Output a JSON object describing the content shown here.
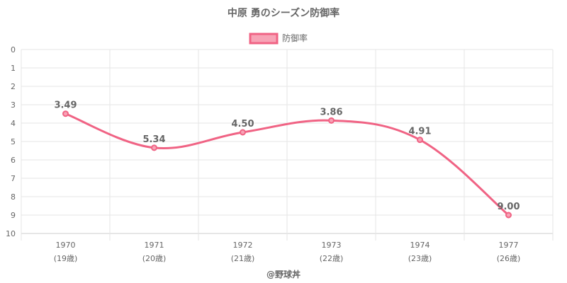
{
  "chart_data": {
    "type": "line",
    "title": "中原 勇のシーズン防御率",
    "legend": "防御率",
    "legend_position": "top",
    "categories": [
      {
        "year": "1970",
        "age": "(19歳)"
      },
      {
        "year": "1971",
        "age": "(20歳)"
      },
      {
        "year": "1972",
        "age": "(21歳)"
      },
      {
        "year": "1973",
        "age": "(22歳)"
      },
      {
        "year": "1974",
        "age": "(23歳)"
      },
      {
        "year": "1977",
        "age": "(26歳)"
      }
    ],
    "series": [
      {
        "name": "防御率",
        "values": [
          3.49,
          5.34,
          4.5,
          3.86,
          4.91,
          9.0
        ],
        "labels": [
          "3.49",
          "5.34",
          "4.50",
          "3.86",
          "4.91",
          "9.00"
        ]
      }
    ],
    "y_ticks": [
      "0",
      "1",
      "2",
      "3",
      "4",
      "5",
      "6",
      "7",
      "8",
      "9",
      "10"
    ],
    "ylim": [
      0,
      10
    ],
    "y_reversed": true,
    "grid": true,
    "line_color": "#f06384",
    "legend_fill": "#f7a3b6"
  },
  "credit": "@野球丼"
}
